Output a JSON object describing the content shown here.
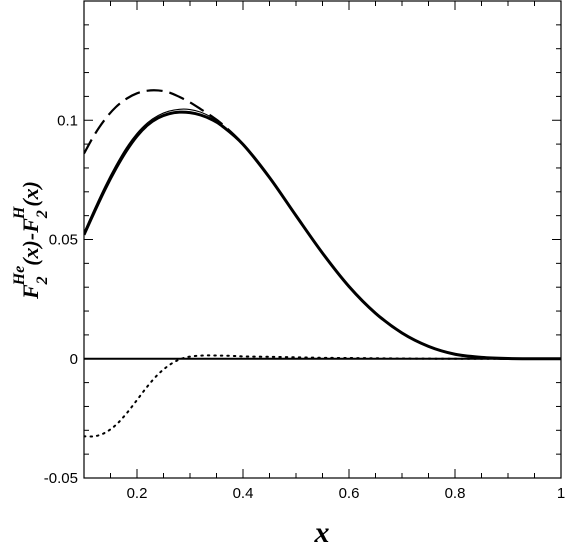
{
  "chart_data": {
    "type": "line",
    "xlabel": "x",
    "ylabel": {
      "parts": [
        "F",
        "2",
        "He",
        "(x)-F",
        "2",
        "H",
        "(x)"
      ]
    },
    "xlim": [
      0.1,
      1.0
    ],
    "ylim": [
      -0.05,
      0.15
    ],
    "xticks": [
      0.2,
      0.4,
      0.6,
      0.8,
      1.0
    ],
    "xtick_labels": [
      "0.2",
      "0.4",
      "0.6",
      "0.8",
      "1"
    ],
    "yticks": [
      -0.05,
      0.0,
      0.05,
      0.1
    ],
    "ytick_labels": [
      "-0.05",
      "0",
      "0.05",
      "0.1"
    ],
    "grid": false,
    "legend": "none",
    "series": [
      {
        "style": "dashed",
        "x": [
          0.1,
          0.12,
          0.14,
          0.16,
          0.18,
          0.2,
          0.22,
          0.24,
          0.26,
          0.28,
          0.3,
          0.32,
          0.34,
          0.36,
          0.4,
          0.45,
          0.5,
          0.55,
          0.6,
          0.65,
          0.7,
          0.75,
          0.8,
          0.85,
          0.9,
          0.95,
          1.0
        ],
        "y": [
          0.086,
          0.094,
          0.1005,
          0.1055,
          0.109,
          0.1113,
          0.1124,
          0.1125,
          0.1117,
          0.1098,
          0.1075,
          0.1047,
          0.1018,
          0.0985,
          0.09,
          0.076,
          0.06,
          0.0443,
          0.0303,
          0.0191,
          0.0108,
          0.0052,
          0.0019,
          0.0006,
          0.0001,
          0.0,
          0.0
        ]
      },
      {
        "style": "solid-thin",
        "x": [
          0.1,
          0.12,
          0.14,
          0.16,
          0.18,
          0.2,
          0.22,
          0.24,
          0.26,
          0.28,
          0.3,
          0.32,
          0.34,
          0.36,
          0.4,
          0.45,
          0.5,
          0.55,
          0.6,
          0.65,
          0.7,
          0.75,
          0.8,
          0.85,
          0.9,
          0.95,
          1.0
        ],
        "y": [
          0.053,
          0.063,
          0.0725,
          0.081,
          0.0885,
          0.0945,
          0.099,
          0.102,
          0.1038,
          0.1046,
          0.1045,
          0.1034,
          0.1013,
          0.0982,
          0.09,
          0.076,
          0.06,
          0.0443,
          0.0303,
          0.0191,
          0.0108,
          0.0052,
          0.0019,
          0.0006,
          0.0001,
          0.0,
          0.0
        ]
      },
      {
        "style": "solid-thick",
        "x": [
          0.1,
          0.12,
          0.14,
          0.16,
          0.18,
          0.2,
          0.22,
          0.24,
          0.26,
          0.28,
          0.3,
          0.32,
          0.34,
          0.36,
          0.4,
          0.45,
          0.5,
          0.55,
          0.6,
          0.65,
          0.7,
          0.75,
          0.8,
          0.85,
          0.9,
          0.95,
          1.0
        ],
        "y": [
          0.052,
          0.0618,
          0.0712,
          0.0797,
          0.0872,
          0.0934,
          0.098,
          0.101,
          0.1027,
          0.1034,
          0.1032,
          0.1022,
          0.1004,
          0.0977,
          0.0899,
          0.076,
          0.06,
          0.0443,
          0.0303,
          0.0191,
          0.0108,
          0.0052,
          0.0019,
          0.0006,
          0.0001,
          0.0,
          0.0
        ]
      },
      {
        "style": "dotted",
        "x": [
          0.1,
          0.12,
          0.14,
          0.16,
          0.18,
          0.2,
          0.22,
          0.24,
          0.26,
          0.28,
          0.3,
          0.32,
          0.34,
          0.36,
          0.38,
          0.4,
          0.45,
          0.5,
          0.55,
          0.6,
          0.7,
          0.8,
          0.9,
          1.0
        ],
        "y": [
          -0.0325,
          -0.0325,
          -0.031,
          -0.0278,
          -0.023,
          -0.0173,
          -0.0115,
          -0.0065,
          -0.0028,
          -0.0003,
          0.0009,
          0.0013,
          0.0014,
          0.0013,
          0.0012,
          0.001,
          0.0008,
          0.0006,
          0.0004,
          0.0003,
          0.0001,
          0.0,
          0.0,
          0.0
        ]
      },
      {
        "style": "zero-line",
        "x": [
          0.1,
          1.0
        ],
        "y": [
          0.0,
          0.0
        ]
      }
    ]
  }
}
